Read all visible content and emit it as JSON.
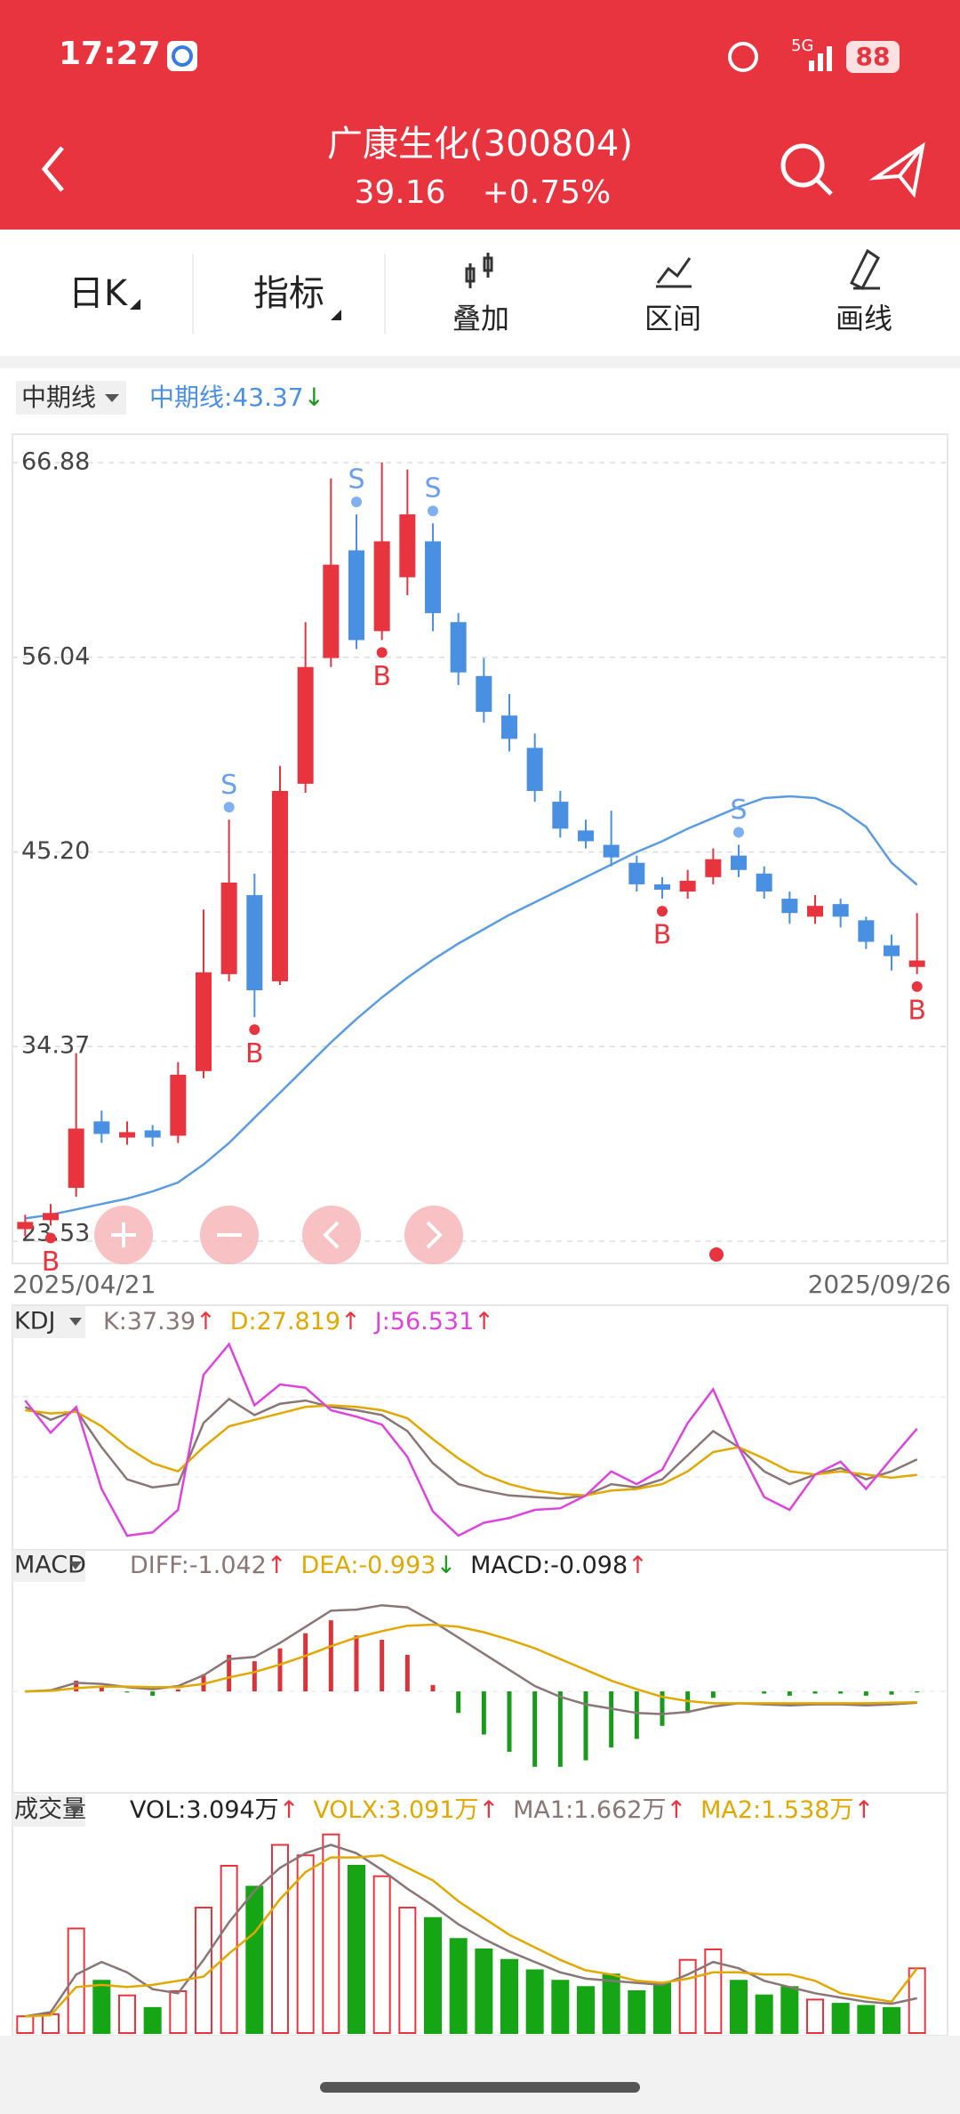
{
  "status_bar": {
    "time": "17:27",
    "network": "5G",
    "battery": "88"
  },
  "header": {
    "title": "广康生化(300804)",
    "price": "39.16",
    "change": "+0.75%"
  },
  "toolbar": {
    "period": "日K",
    "indicator": "指标",
    "items": [
      "叠加",
      "区间",
      "画线"
    ]
  },
  "chart_data": {
    "type": "candlestick",
    "categories": [
      "2025/04/21",
      null,
      null,
      null,
      null,
      null,
      null,
      null,
      null,
      null,
      null,
      null,
      null,
      null,
      null,
      null,
      null,
      null,
      null,
      null,
      null,
      null,
      null,
      null,
      null,
      null,
      null,
      null,
      null,
      null,
      null,
      null,
      null,
      null,
      null,
      "2025/09/26"
    ],
    "open": [
      24.2,
      24.7,
      26.5,
      30.2,
      29.3,
      29.7,
      29.4,
      33.0,
      38.4,
      42.8,
      38.0,
      49.0,
      56.0,
      62.0,
      57.5,
      60.5,
      62.5,
      58.0,
      55.0,
      52.8,
      51.0,
      48.0,
      46.4,
      45.6,
      44.6,
      43.4,
      43.0,
      43.8,
      45.0,
      44.0,
      42.6,
      41.6,
      42.3,
      41.4,
      40.0,
      38.8
    ],
    "high": [
      25.0,
      25.6,
      34.0,
      30.8,
      30.2,
      30.0,
      33.5,
      42.0,
      47.0,
      44.0,
      50.0,
      58.0,
      66.0,
      64.0,
      66.9,
      66.5,
      63.5,
      58.5,
      56.0,
      54.0,
      51.8,
      48.6,
      47.0,
      47.5,
      45.0,
      43.8,
      44.2,
      45.4,
      45.6,
      44.4,
      43.0,
      42.8,
      42.6,
      41.6,
      40.6,
      41.8
    ],
    "low": [
      23.8,
      24.4,
      26.0,
      29.0,
      28.9,
      28.8,
      29.0,
      32.6,
      38.0,
      36.0,
      37.8,
      48.5,
      55.5,
      56.5,
      57.0,
      59.5,
      57.5,
      54.5,
      52.4,
      50.8,
      48.0,
      46.0,
      45.4,
      44.4,
      43.0,
      42.6,
      42.6,
      43.4,
      43.8,
      42.6,
      41.2,
      41.2,
      41.0,
      39.8,
      38.6,
      38.4
    ],
    "close": [
      24.6,
      25.1,
      29.8,
      29.5,
      29.6,
      29.3,
      32.8,
      38.5,
      43.5,
      37.5,
      48.6,
      55.5,
      61.2,
      57.0,
      62.5,
      64.0,
      58.5,
      55.2,
      53.0,
      51.5,
      48.6,
      46.5,
      45.8,
      44.9,
      43.4,
      43.1,
      43.6,
      44.8,
      44.2,
      43.0,
      41.8,
      42.2,
      41.6,
      40.2,
      39.4,
      39.16
    ],
    "up_color": "#e8343f",
    "down_color": "#4a90e2",
    "ylim": [
      23.53,
      66.88
    ],
    "yticks": [
      66.88,
      56.04,
      {
        "value": 45.2,
        "label": "45.20"
      },
      34.37,
      23.53
    ],
    "signals": [
      {
        "label": "B",
        "index": 1
      },
      {
        "label": "S",
        "index": 8
      },
      {
        "label": "B",
        "index": 9
      },
      {
        "label": "S",
        "index": 13
      },
      {
        "label": "B",
        "index": 14
      },
      {
        "label": "S",
        "index": 16
      },
      {
        "label": "B",
        "index": 25
      },
      {
        "label": "S",
        "index": 28
      },
      {
        "label": "B",
        "index": 35
      }
    ],
    "mid_menu": "中期线",
    "mid_legend": {
      "text": "中期线:43.37",
      "arrow": "↓",
      "color": "#4a90e2"
    },
    "mid": [
      24.8,
      25.0,
      25.3,
      25.6,
      25.9,
      26.3,
      26.8,
      27.8,
      29.0,
      30.4,
      31.8,
      33.2,
      34.6,
      35.9,
      37.1,
      38.2,
      39.2,
      40.1,
      40.9,
      41.7,
      42.4,
      43.1,
      43.8,
      44.5,
      45.2,
      45.8,
      46.5,
      47.1,
      47.7,
      48.2,
      48.3,
      48.2,
      47.6,
      46.6,
      44.6,
      43.37
    ],
    "kdj": {
      "menu": "KDJ",
      "ylim": [
        -15,
        115
      ],
      "series": [
        {
          "name": "K:37.39",
          "arrow": "↑",
          "color": "#8a7676",
          "values": [
            70,
            62,
            68,
            45,
            25,
            20,
            22,
            60,
            75,
            65,
            72,
            74,
            70,
            68,
            65,
            55,
            35,
            22,
            18,
            15,
            14,
            13,
            15,
            22,
            20,
            25,
            40,
            55,
            45,
            30,
            22,
            28,
            32,
            25,
            30,
            37.39
          ]
        },
        {
          "name": "D:27.819",
          "arrow": "↑",
          "color": "#e0a800",
          "values": [
            68,
            66,
            67,
            58,
            45,
            35,
            30,
            45,
            58,
            62,
            66,
            70,
            71,
            70,
            68,
            63,
            50,
            38,
            28,
            22,
            18,
            16,
            15,
            18,
            19,
            22,
            30,
            42,
            45,
            38,
            30,
            28,
            30,
            28,
            26,
            27.819
          ]
        },
        {
          "name": "J:56.531",
          "arrow": "↑",
          "color": "#dd44dd",
          "values": [
            74,
            54,
            70,
            19,
            -10,
            -8,
            6,
            90,
            109,
            71,
            84,
            82,
            68,
            64,
            59,
            39,
            5,
            -10,
            -2,
            1,
            6,
            7,
            15,
            30,
            22,
            31,
            60,
            81,
            45,
            14,
            6,
            28,
            36,
            19,
            38,
            56.531
          ]
        }
      ]
    },
    "macd": {
      "menu": "MACD",
      "ylim": [
        -9,
        10
      ],
      "series": [
        {
          "name": "DIFF:-1.042",
          "arrow": "↑",
          "color": "#8a7676",
          "values": [
            0,
            0.1,
            0.8,
            0.7,
            0.4,
            0.2,
            0.5,
            1.5,
            3,
            3.2,
            4.5,
            6,
            7.5,
            7.6,
            8,
            7.8,
            6.5,
            5,
            3.5,
            2,
            0.5,
            -0.5,
            -1.2,
            -1.6,
            -2,
            -2.1,
            -1.9,
            -1.4,
            -1.1,
            -1.2,
            -1.3,
            -1.2,
            -1.2,
            -1.3,
            -1.2,
            -1.042
          ]
        },
        {
          "name": "DEA:-0.993",
          "arrow": "↓",
          "color": "#e0a800",
          "values": [
            0,
            0.05,
            0.3,
            0.45,
            0.45,
            0.4,
            0.4,
            0.7,
            1.3,
            1.8,
            2.5,
            3.3,
            4.2,
            5,
            5.6,
            6.1,
            6.2,
            6,
            5.5,
            4.8,
            4,
            3,
            2,
            1,
            0.2,
            -0.5,
            -0.9,
            -1.1,
            -1.1,
            -1.1,
            -1.1,
            -1.1,
            -1.1,
            -1.1,
            -1.05,
            -0.993
          ]
        },
        {
          "name": "MACD:-0.098",
          "arrow": "↑",
          "color": "#222222",
          "values": [
            0,
            0.1,
            1,
            0.5,
            -0.1,
            -0.4,
            0.2,
            1.6,
            3.4,
            2.8,
            4,
            5.4,
            6.6,
            5.2,
            4.8,
            3.4,
            0.6,
            -2,
            -4,
            -5.6,
            -7,
            -7,
            -6.4,
            -5.2,
            -4.4,
            -3.2,
            -2,
            -0.6,
            0,
            -0.2,
            -0.4,
            -0.2,
            -0.2,
            -0.4,
            -0.3,
            -0.098
          ]
        }
      ]
    },
    "volume": {
      "menu": "成交量",
      "ylim": [
        0,
        10
      ],
      "series": [
        {
          "name": "VOL:3.094万",
          "arrow": "↑",
          "color": "#222222",
          "values": [
            0.8,
            0.9,
            5.0,
            2.5,
            1.8,
            1.2,
            2.0,
            6.0,
            8.0,
            7.0,
            9.0,
            8.5,
            9.5,
            8.0,
            7.5,
            6.0,
            5.5,
            4.5,
            4.0,
            3.5,
            3.0,
            2.5,
            2.2,
            2.8,
            2.0,
            2.4,
            3.5,
            4.0,
            2.5,
            1.8,
            2.2,
            1.6,
            1.4,
            1.3,
            1.2,
            3.094
          ]
        },
        {
          "name": "VOLX:3.091万",
          "arrow": "↑",
          "color": "#e0a800",
          "values": [
            0.8,
            0.85,
            2.2,
            2.3,
            2.2,
            2.3,
            2.5,
            2.7,
            3.8,
            4.8,
            6.4,
            7.7,
            8.4,
            8.4,
            8.5,
            7.9,
            7.3,
            6.3,
            5.5,
            4.7,
            4.1,
            3.5,
            3.0,
            2.8,
            2.5,
            2.4,
            2.6,
            2.9,
            2.9,
            2.8,
            2.8,
            2.5,
            1.9,
            1.7,
            1.5,
            3.091
          ]
        },
        {
          "name": "MA1:1.662万",
          "arrow": "↑",
          "color": "#8a7676",
          "values": [
            0.8,
            1.0,
            2.8,
            3.4,
            2.9,
            2.1,
            1.9,
            3.5,
            5.3,
            6.8,
            7.9,
            8.6,
            9.0,
            8.6,
            7.8,
            6.9,
            6.1,
            5.2,
            4.5,
            3.9,
            3.4,
            2.9,
            2.6,
            2.5,
            2.4,
            2.3,
            2.8,
            3.4,
            3.1,
            2.5,
            2.2,
            1.9,
            1.7,
            1.5,
            1.4,
            1.662
          ]
        },
        {
          "name": "MA2:1.538万",
          "arrow": "↑",
          "color": "#e0a800",
          "values": null
        }
      ]
    }
  }
}
